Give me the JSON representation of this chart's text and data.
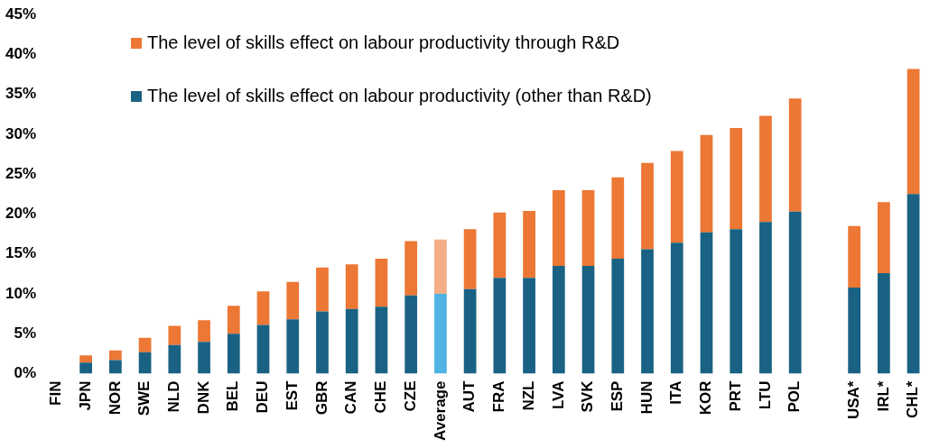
{
  "chart_data": {
    "type": "bar",
    "stacked": true,
    "categories": [
      "FIN",
      "JPN",
      "NOR",
      "SWE",
      "NLD",
      "DNK",
      "BEL",
      "DEU",
      "EST",
      "GBR",
      "CAN",
      "CHE",
      "CZE",
      "Average",
      "AUT",
      "FRA",
      "NZL",
      "LVA",
      "SVK",
      "ESP",
      "HUN",
      "ITA",
      "KOR",
      "PRT",
      "LTU",
      "POL",
      null,
      "USA*",
      "IRL*",
      "CHL*"
    ],
    "series": [
      {
        "name": "The level of skills effect on labour productivity (other than R&D)",
        "color": "#1a6283",
        "colors": [
          "#1a6283",
          "#1a6283",
          "#1a6283",
          "#1a6283",
          "#1a6283",
          "#1a6283",
          "#1a6283",
          "#1a6283",
          "#1a6283",
          "#1a6283",
          "#1a6283",
          "#1a6283",
          "#1a6283",
          "#4fb3e4",
          "#1a6283",
          "#1a6283",
          "#1a6283",
          "#1a6283",
          "#1a6283",
          "#1a6283",
          "#1a6283",
          "#1a6283",
          "#1a6283",
          "#1a6283",
          "#1a6283",
          "#1a6283",
          "#1a6283",
          "#1a6283",
          "#1a6283",
          "#1a6283"
        ],
        "values": [
          0,
          1.4,
          1.7,
          2.7,
          3.6,
          4.0,
          5.0,
          6.1,
          6.8,
          7.8,
          8.1,
          8.4,
          9.8,
          10.0,
          10.6,
          12.0,
          12.0,
          13.5,
          13.5,
          14.4,
          15.6,
          16.4,
          17.7,
          18.1,
          19.0,
          20.3,
          null,
          10.8,
          12.6,
          22.5
        ]
      },
      {
        "name": "The level of skills effect on labour productivity through R&D",
        "color": "#ed7734",
        "colors": [
          "#ed7734",
          "#ed7734",
          "#ed7734",
          "#ed7734",
          "#ed7734",
          "#ed7734",
          "#ed7734",
          "#ed7734",
          "#ed7734",
          "#ed7734",
          "#ed7734",
          "#ed7734",
          "#ed7734",
          "#f4ae87",
          "#ed7734",
          "#ed7734",
          "#ed7734",
          "#ed7734",
          "#ed7734",
          "#ed7734",
          "#ed7734",
          "#ed7734",
          "#ed7734",
          "#ed7734",
          "#ed7734",
          "#ed7734",
          "#ed7734",
          "#ed7734",
          "#ed7734",
          "#ed7734"
        ],
        "values": [
          0,
          0.9,
          1.2,
          1.8,
          2.4,
          2.7,
          3.5,
          4.2,
          4.7,
          5.5,
          5.6,
          6.0,
          6.8,
          6.8,
          7.5,
          8.2,
          8.4,
          9.5,
          9.5,
          10.2,
          10.8,
          11.5,
          12.2,
          12.7,
          13.3,
          14.2,
          null,
          7.7,
          8.9,
          15.7
        ]
      }
    ],
    "ylim": [
      0,
      45
    ],
    "yticks": [
      {
        "value": 0,
        "label": "0%"
      },
      {
        "value": 5,
        "label": "5%"
      },
      {
        "value": 10,
        "label": "10%"
      },
      {
        "value": 15,
        "label": "15%"
      },
      {
        "value": 20,
        "label": "20%"
      },
      {
        "value": 25,
        "label": "25%"
      },
      {
        "value": 30,
        "label": "30%"
      },
      {
        "value": 35,
        "label": "35%"
      },
      {
        "value": 40,
        "label": "40%"
      },
      {
        "value": 45,
        "label": "45%"
      }
    ],
    "legend": "top left"
  }
}
